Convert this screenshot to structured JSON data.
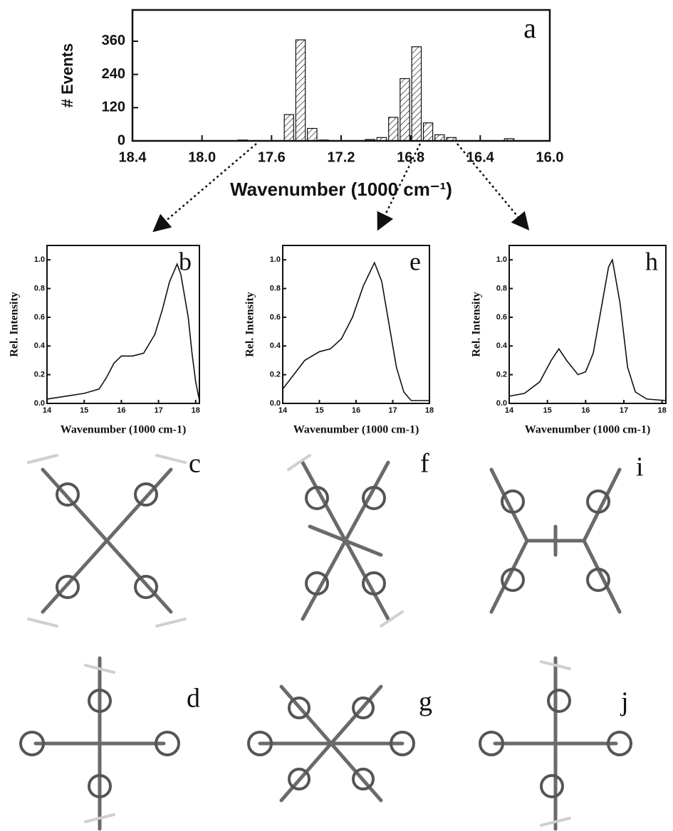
{
  "chart_data": [
    {
      "type": "histogram",
      "panel_label": "a",
      "xlabel": "Wavenumber (1000 cm⁻¹)",
      "ylabel": "# Events",
      "bins": [
        17.8,
        17.733,
        17.667,
        17.6,
        17.533,
        17.467,
        17.4,
        17.333,
        17.267,
        17.2,
        17.133,
        17.067,
        17.0,
        16.933,
        16.867,
        16.8,
        16.733,
        16.667,
        16.6,
        16.533,
        16.467,
        16.4,
        16.333,
        16.267,
        16.2
      ],
      "values": [
        3,
        0,
        0,
        0,
        95,
        365,
        45,
        3,
        0,
        0,
        0,
        5,
        12,
        85,
        225,
        340,
        65,
        22,
        12,
        0,
        0,
        0,
        0,
        8
      ],
      "color": "#ffffff",
      "xlim": [
        18.4,
        16.0
      ],
      "xticks": [
        18.4,
        {
          "value": 18.0,
          "label": "18.0"
        },
        17.6,
        17.2,
        16.8,
        16.4,
        {
          "value": 16.0,
          "label": "16.0"
        }
      ],
      "ylim": [
        0,
        473
      ],
      "yticks": [
        0,
        120,
        240,
        360
      ]
    },
    {
      "type": "line",
      "panel_label": "b",
      "xlabel": "Wavenumber (1000 cm-1)",
      "ylabel": "Rel. Intensity",
      "color": "#111111",
      "x": [
        14,
        14.5,
        15,
        15.4,
        15.6,
        15.8,
        16,
        16.3,
        16.6,
        16.9,
        17.1,
        17.3,
        17.5,
        17.6,
        17.7,
        17.8,
        17.9,
        18.0,
        18.1
      ],
      "values": [
        0.03,
        0.05,
        0.07,
        0.1,
        0.18,
        0.28,
        0.33,
        0.33,
        0.35,
        0.48,
        0.65,
        0.85,
        0.97,
        0.9,
        0.75,
        0.6,
        0.35,
        0.15,
        0.02
      ],
      "xlim": [
        14,
        18.1
      ],
      "xticks": [
        14,
        15,
        16,
        17,
        18
      ],
      "ylim": [
        0,
        1.1
      ],
      "yticks": [
        {
          "value": 0,
          "label": "0.0"
        },
        0.2,
        0.4,
        0.6,
        0.8,
        {
          "value": 1,
          "label": "1.0"
        }
      ]
    },
    {
      "type": "line",
      "panel_label": "e",
      "xlabel": "Wavenumber (1000 cm-1)",
      "ylabel": "Rel. Intensity",
      "color": "#111111",
      "x": [
        14,
        14.3,
        14.6,
        15,
        15.3,
        15.6,
        15.9,
        16.2,
        16.5,
        16.7,
        16.9,
        17.1,
        17.3,
        17.5,
        18
      ],
      "values": [
        0.1,
        0.2,
        0.3,
        0.36,
        0.38,
        0.45,
        0.6,
        0.82,
        0.98,
        0.85,
        0.55,
        0.25,
        0.08,
        0.02,
        0.02
      ],
      "xlim": [
        14,
        18
      ],
      "xticks": [
        14,
        15,
        16,
        17,
        18
      ],
      "ylim": [
        0,
        1.1
      ],
      "yticks": [
        {
          "value": 0,
          "label": "0.0"
        },
        0.2,
        0.4,
        0.6,
        0.8,
        {
          "value": 1,
          "label": "1.0"
        }
      ]
    },
    {
      "type": "line",
      "panel_label": "h",
      "xlabel": "Wavenumber (1000 cm-1)",
      "ylabel": "Rel. Intensity",
      "color": "#111111",
      "x": [
        14,
        14.4,
        14.8,
        15.1,
        15.3,
        15.5,
        15.8,
        16,
        16.2,
        16.4,
        16.6,
        16.7,
        16.9,
        17.1,
        17.3,
        17.6,
        18.1
      ],
      "values": [
        0.05,
        0.07,
        0.15,
        0.3,
        0.38,
        0.3,
        0.2,
        0.22,
        0.35,
        0.65,
        0.95,
        1.0,
        0.7,
        0.25,
        0.08,
        0.03,
        0.02
      ],
      "xlim": [
        14,
        18.1
      ],
      "xticks": [
        14,
        15,
        16,
        17,
        18
      ],
      "ylim": [
        0,
        1.1
      ],
      "yticks": [
        {
          "value": 0,
          "label": "0.0"
        },
        0.2,
        0.4,
        0.6,
        0.8,
        {
          "value": 1,
          "label": "1.0"
        }
      ]
    }
  ],
  "structure_labels": [
    "c",
    "f",
    "i",
    "d",
    "g",
    "j"
  ]
}
